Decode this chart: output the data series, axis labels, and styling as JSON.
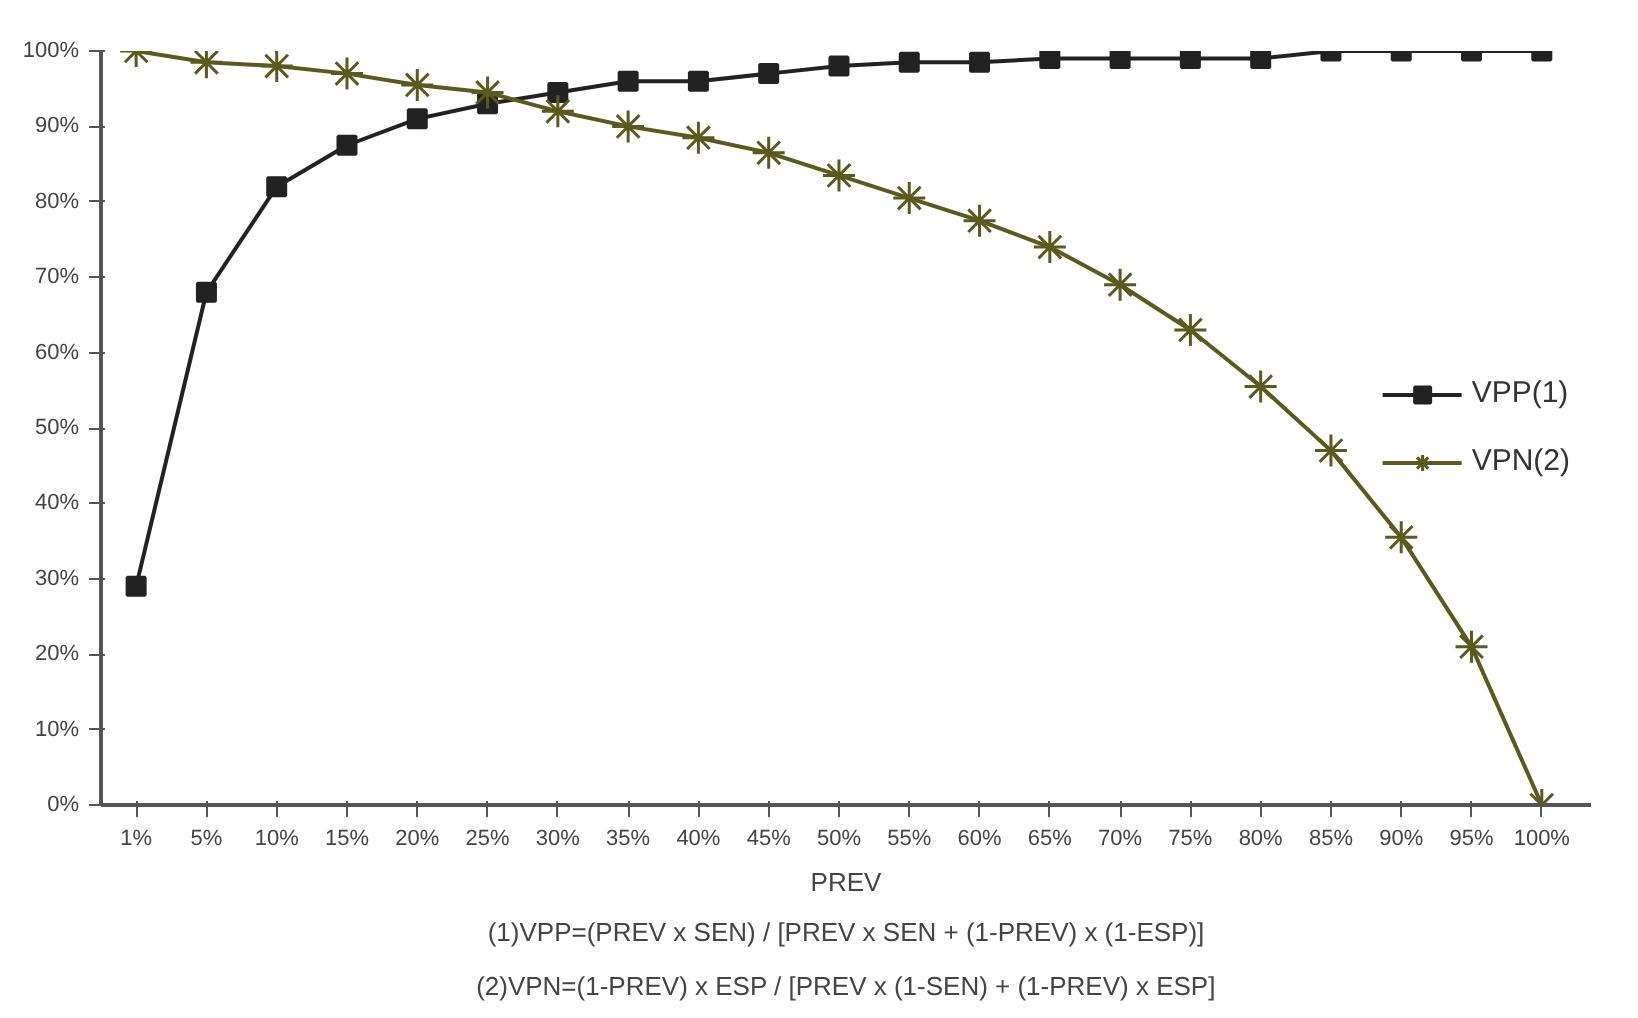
{
  "chart_data": {
    "type": "line",
    "xlabel": "PREV",
    "categories": [
      "1%",
      "5%",
      "10%",
      "15%",
      "20%",
      "25%",
      "30%",
      "35%",
      "40%",
      "45%",
      "50%",
      "55%",
      "60%",
      "65%",
      "70%",
      "75%",
      "80%",
      "85%",
      "90%",
      "95%",
      "100%"
    ],
    "series": [
      {
        "name": "VPP(1)",
        "color": "#222222",
        "marker": "square",
        "values": [
          29,
          68,
          82,
          87.5,
          91,
          93,
          94.5,
          96,
          96,
          97,
          98,
          98.5,
          98.5,
          99,
          99,
          99,
          99,
          100,
          100,
          100,
          100
        ]
      },
      {
        "name": "VPN(2)",
        "color": "#5a5a1e",
        "marker": "cross",
        "values": [
          100,
          98.5,
          98,
          97,
          95.5,
          94.5,
          92,
          90,
          88.5,
          86.5,
          83.5,
          80.5,
          77.5,
          74,
          69,
          63,
          55.5,
          47,
          35.5,
          21,
          0
        ]
      }
    ],
    "ylim": [
      0,
      100
    ],
    "yticks": [
      {
        "value": 0,
        "label": "0%"
      },
      {
        "value": 10,
        "label": "10%"
      },
      {
        "value": 20,
        "label": "20%"
      },
      {
        "value": 30,
        "label": "30%"
      },
      {
        "value": 40,
        "label": "40%"
      },
      {
        "value": 50,
        "label": "50%"
      },
      {
        "value": 60,
        "label": "60%"
      },
      {
        "value": 70,
        "label": "70%"
      },
      {
        "value": 80,
        "label": "80%"
      },
      {
        "value": 90,
        "label": "90%"
      },
      {
        "value": 100,
        "label": "100%"
      }
    ],
    "grid": false,
    "legend": "right",
    "annotations": [
      "(1)VPP=(PREV x SEN) / [PREV x SEN + (1-PREV) x (1-ESP)]",
      "(2)VPN=(1-PREV) x ESP / [PREV x (1-SEN) + (1-PREV) x ESP]"
    ]
  }
}
